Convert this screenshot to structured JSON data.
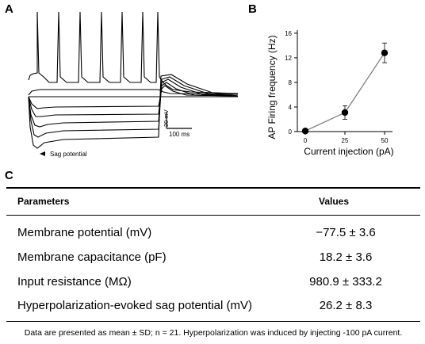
{
  "panels": {
    "a": "A",
    "b": "B",
    "c": "C"
  },
  "panel_a": {
    "scale_voltage": "20 mV",
    "scale_time": "100 ms",
    "sag_annotation": "Sag potential"
  },
  "chart_data": {
    "type": "line",
    "x": [
      0,
      25,
      50
    ],
    "y": [
      0.1,
      3.1,
      12.8
    ],
    "error": [
      0.3,
      1.1,
      1.6
    ],
    "xticks": [
      "0",
      "25",
      "50"
    ],
    "yticks": [
      "0",
      "4",
      "8",
      "12",
      "16"
    ],
    "ylim": [
      0,
      16.5
    ],
    "xlabel": "Current injection (pA)",
    "ylabel": "AP Firing frequency (Hz)"
  },
  "table": {
    "headers": [
      "Parameters",
      "Values"
    ],
    "rows": [
      {
        "parameter": "Membrane potential (mV)",
        "value": "−77.5 ± 3.6"
      },
      {
        "parameter": "Membrane capacitance (pF)",
        "value": "18.2 ± 3.6"
      },
      {
        "parameter": "Input resistance (MΩ)",
        "value": "980.9 ± 333.2"
      },
      {
        "parameter": "Hyperpolarization-evoked sag potential (mV)",
        "value": "26.2 ± 8.3"
      }
    ],
    "footnote": "Data are presented as mean ± SD; n = 21. Hyperpolarization was induced by injecting -100 pA current."
  }
}
